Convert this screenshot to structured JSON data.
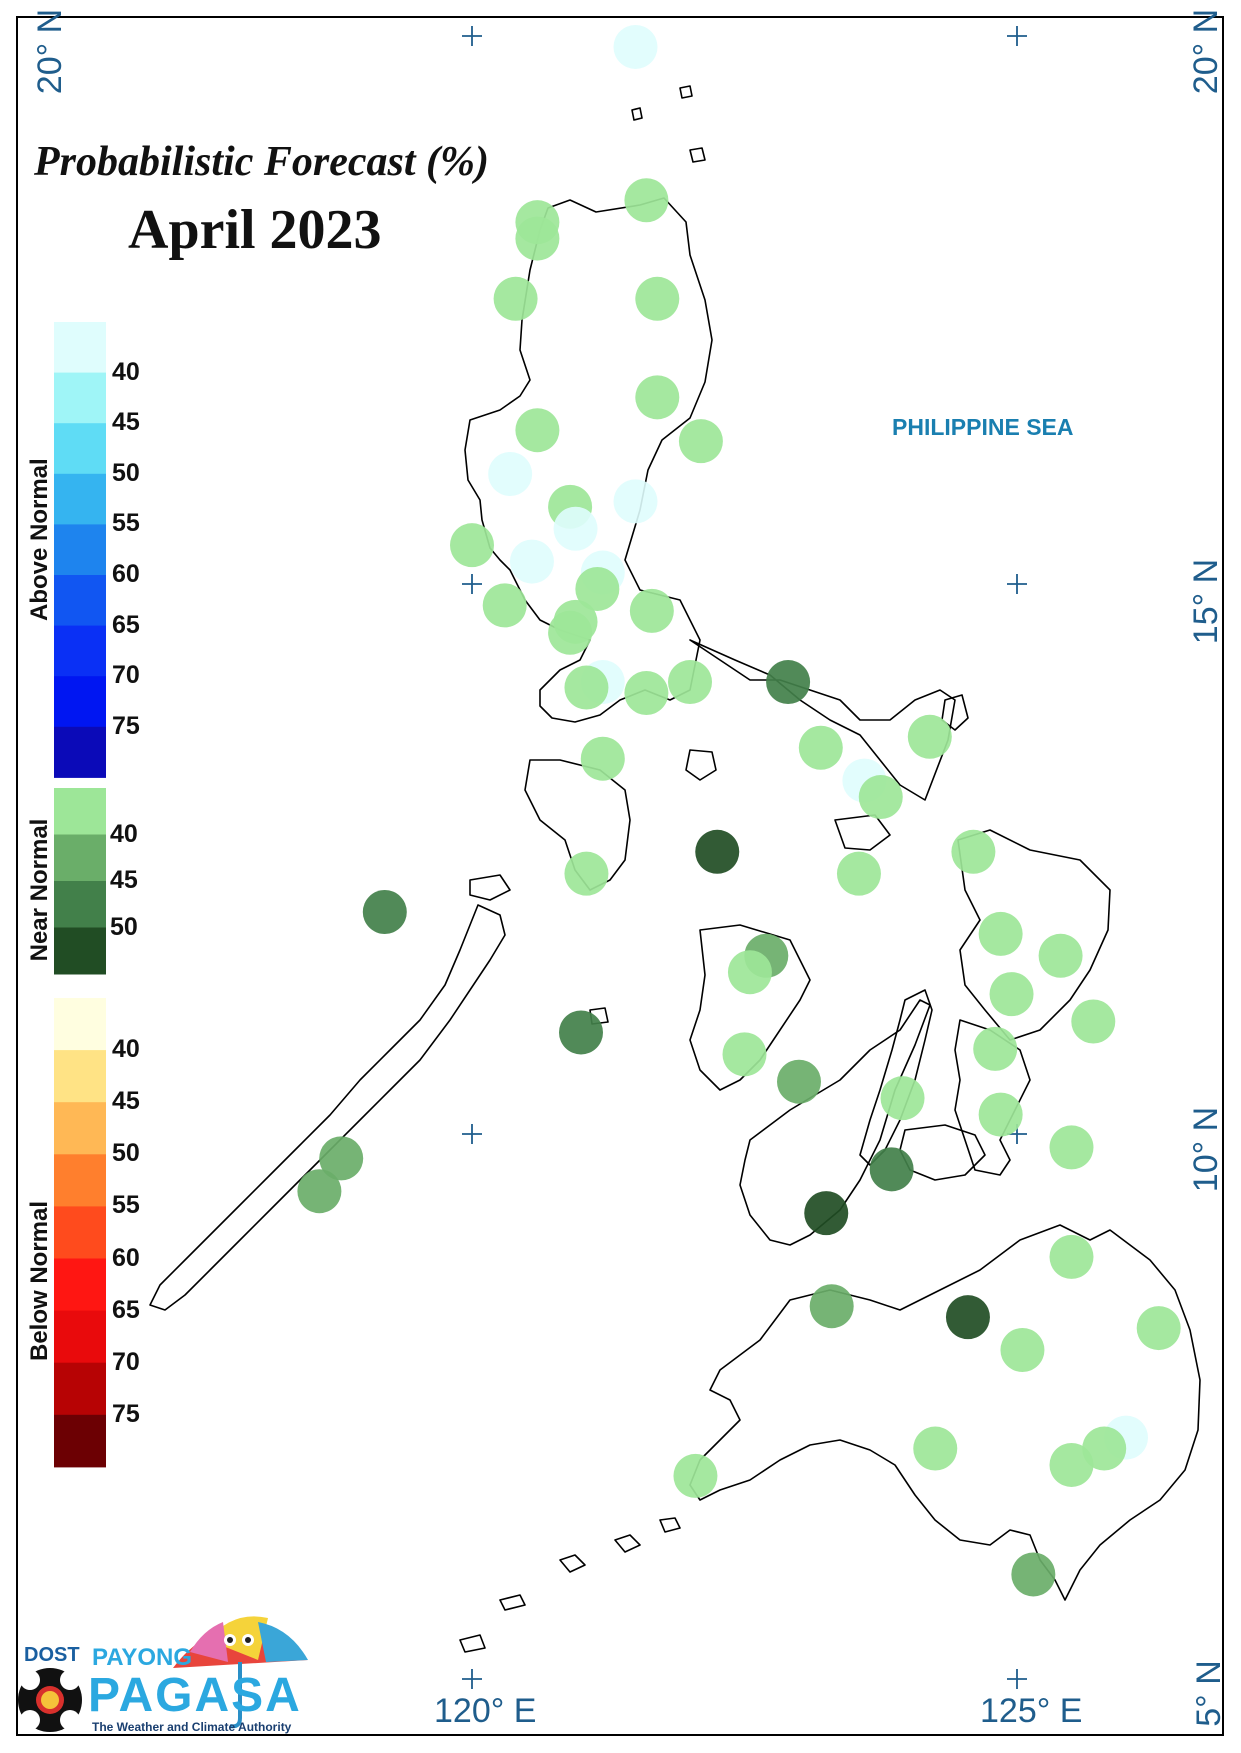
{
  "title": "Probabilistic Forecast (%)",
  "month": "April 2023",
  "sea_label": "PHILIPPINE SEA",
  "coords": {
    "lat_top": "20° N",
    "lat_mid": "15° N",
    "lat_low": "10° N",
    "lat_bottom": "5° N",
    "lon_left": "120° E",
    "lon_right": "125° E"
  },
  "legend": {
    "above": {
      "title": "Above Normal",
      "ticks": [
        "40",
        "45",
        "50",
        "55",
        "60",
        "65",
        "70",
        "75"
      ],
      "colors": [
        "#dffdfd",
        "#9ff5f7",
        "#5fdcf5",
        "#35b4f0",
        "#1e84ee",
        "#1156f2",
        "#0a30f5",
        "#0016f2",
        "#0b0ab8"
      ]
    },
    "near": {
      "title": "Near Normal",
      "ticks": [
        "40",
        "45",
        "50"
      ],
      "colors": [
        "#9de698",
        "#6aae69",
        "#42804a",
        "#214d24"
      ]
    },
    "below": {
      "title": "Below Normal",
      "ticks": [
        "40",
        "45",
        "50",
        "55",
        "60",
        "65",
        "70",
        "75"
      ],
      "colors": [
        "#fffee0",
        "#ffe385",
        "#ffb855",
        "#ff7f2d",
        "#ff4b1d",
        "#ff1612",
        "#e90a0c",
        "#b70304",
        "#6c0003"
      ]
    }
  },
  "stations": [
    {
      "lon": 121.5,
      "lat": 19.9,
      "category": "above",
      "bin": 0
    },
    {
      "lon": 121.6,
      "lat": 18.5,
      "category": "near",
      "bin": 0
    },
    {
      "lon": 120.6,
      "lat": 18.3,
      "category": "near",
      "bin": 0
    },
    {
      "lon": 120.6,
      "lat": 18.15,
      "category": "near",
      "bin": 0
    },
    {
      "lon": 120.4,
      "lat": 17.6,
      "category": "near",
      "bin": 0
    },
    {
      "lon": 121.7,
      "lat": 17.6,
      "category": "near",
      "bin": 0
    },
    {
      "lon": 121.7,
      "lat": 16.7,
      "category": "near",
      "bin": 0
    },
    {
      "lon": 120.6,
      "lat": 16.4,
      "category": "near",
      "bin": 0
    },
    {
      "lon": 122.1,
      "lat": 16.3,
      "category": "near",
      "bin": 0
    },
    {
      "lon": 120.35,
      "lat": 16.0,
      "category": "above",
      "bin": 0
    },
    {
      "lon": 120.9,
      "lat": 15.7,
      "category": "near",
      "bin": 0
    },
    {
      "lon": 121.5,
      "lat": 15.75,
      "category": "above",
      "bin": 0
    },
    {
      "lon": 120.95,
      "lat": 15.5,
      "category": "above",
      "bin": 0
    },
    {
      "lon": 120.0,
      "lat": 15.35,
      "category": "near",
      "bin": 0
    },
    {
      "lon": 120.55,
      "lat": 15.2,
      "category": "above",
      "bin": 0
    },
    {
      "lon": 121.2,
      "lat": 15.1,
      "category": "above",
      "bin": 0
    },
    {
      "lon": 121.15,
      "lat": 14.95,
      "category": "near",
      "bin": 0
    },
    {
      "lon": 120.3,
      "lat": 14.8,
      "category": "near",
      "bin": 0
    },
    {
      "lon": 121.65,
      "lat": 14.75,
      "category": "near",
      "bin": 0
    },
    {
      "lon": 120.95,
      "lat": 14.65,
      "category": "near",
      "bin": 0
    },
    {
      "lon": 120.9,
      "lat": 14.55,
      "category": "near",
      "bin": 0
    },
    {
      "lon": 121.2,
      "lat": 14.1,
      "category": "above",
      "bin": 0
    },
    {
      "lon": 121.05,
      "lat": 14.05,
      "category": "near",
      "bin": 0
    },
    {
      "lon": 121.6,
      "lat": 14.0,
      "category": "near",
      "bin": 0
    },
    {
      "lon": 122.0,
      "lat": 14.1,
      "category": "near",
      "bin": 0
    },
    {
      "lon": 122.9,
      "lat": 14.1,
      "category": "near",
      "bin": 2
    },
    {
      "lon": 124.2,
      "lat": 13.6,
      "category": "near",
      "bin": 0
    },
    {
      "lon": 123.2,
      "lat": 13.5,
      "category": "near",
      "bin": 0
    },
    {
      "lon": 123.6,
      "lat": 13.2,
      "category": "above",
      "bin": 0
    },
    {
      "lon": 123.75,
      "lat": 13.05,
      "category": "near",
      "bin": 0
    },
    {
      "lon": 121.2,
      "lat": 13.4,
      "category": "near",
      "bin": 0
    },
    {
      "lon": 122.25,
      "lat": 12.55,
      "category": "near",
      "bin": 3
    },
    {
      "lon": 124.6,
      "lat": 12.55,
      "category": "near",
      "bin": 0
    },
    {
      "lon": 123.55,
      "lat": 12.35,
      "category": "near",
      "bin": 0
    },
    {
      "lon": 121.05,
      "lat": 12.35,
      "category": "near",
      "bin": 0
    },
    {
      "lon": 119.2,
      "lat": 12.0,
      "category": "near",
      "bin": 2
    },
    {
      "lon": 124.85,
      "lat": 11.8,
      "category": "near",
      "bin": 0
    },
    {
      "lon": 125.4,
      "lat": 11.6,
      "category": "near",
      "bin": 0
    },
    {
      "lon": 122.7,
      "lat": 11.6,
      "category": "near",
      "bin": 1
    },
    {
      "lon": 122.55,
      "lat": 11.45,
      "category": "near",
      "bin": 0
    },
    {
      "lon": 124.95,
      "lat": 11.25,
      "category": "near",
      "bin": 0
    },
    {
      "lon": 125.7,
      "lat": 11.0,
      "category": "near",
      "bin": 0
    },
    {
      "lon": 121.0,
      "lat": 10.9,
      "category": "near",
      "bin": 2
    },
    {
      "lon": 122.5,
      "lat": 10.7,
      "category": "near",
      "bin": 0
    },
    {
      "lon": 124.8,
      "lat": 10.75,
      "category": "near",
      "bin": 0
    },
    {
      "lon": 123.0,
      "lat": 10.45,
      "category": "near",
      "bin": 1
    },
    {
      "lon": 123.95,
      "lat": 10.3,
      "category": "near",
      "bin": 0
    },
    {
      "lon": 124.85,
      "lat": 10.15,
      "category": "near",
      "bin": 0
    },
    {
      "lon": 125.5,
      "lat": 9.85,
      "category": "near",
      "bin": 0
    },
    {
      "lon": 118.8,
      "lat": 9.75,
      "category": "near",
      "bin": 1
    },
    {
      "lon": 118.6,
      "lat": 9.45,
      "category": "near",
      "bin": 1
    },
    {
      "lon": 123.85,
      "lat": 9.65,
      "category": "near",
      "bin": 2
    },
    {
      "lon": 123.25,
      "lat": 9.25,
      "category": "near",
      "bin": 3
    },
    {
      "lon": 125.5,
      "lat": 8.85,
      "category": "near",
      "bin": 0
    },
    {
      "lon": 123.3,
      "lat": 8.4,
      "category": "near",
      "bin": 1
    },
    {
      "lon": 124.55,
      "lat": 8.3,
      "category": "near",
      "bin": 3
    },
    {
      "lon": 126.3,
      "lat": 8.2,
      "category": "near",
      "bin": 0
    },
    {
      "lon": 125.05,
      "lat": 8.0,
      "category": "near",
      "bin": 0
    },
    {
      "lon": 126.0,
      "lat": 7.2,
      "category": "above",
      "bin": 0
    },
    {
      "lon": 125.8,
      "lat": 7.1,
      "category": "near",
      "bin": 0
    },
    {
      "lon": 124.25,
      "lat": 7.1,
      "category": "near",
      "bin": 0
    },
    {
      "lon": 125.5,
      "lat": 6.95,
      "category": "near",
      "bin": 0
    },
    {
      "lon": 122.05,
      "lat": 6.85,
      "category": "near",
      "bin": 0
    },
    {
      "lon": 125.15,
      "lat": 5.95,
      "category": "near",
      "bin": 1
    }
  ],
  "logo": {
    "agency": "DOST",
    "line1": "PAYONG",
    "line2": "PAGASA",
    "tagline": "The Weather and Climate Authority"
  }
}
